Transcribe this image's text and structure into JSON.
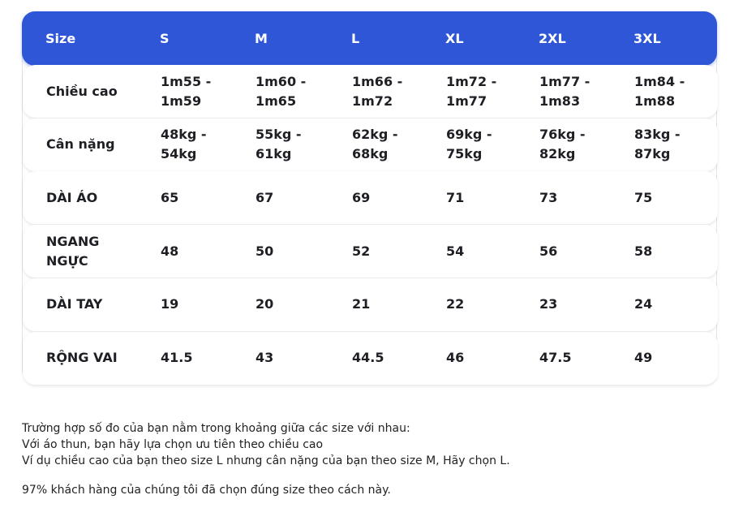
{
  "table": {
    "header": [
      "Size",
      "S",
      "M",
      "L",
      "XL",
      "2XL",
      "3XL"
    ],
    "rows": [
      [
        "Chiều cao",
        "1m55 - 1m59",
        "1m60 - 1m65",
        "1m66 - 1m72",
        "1m72 - 1m77",
        "1m77 - 1m83",
        "1m84 - 1m88"
      ],
      [
        "Cân nặng",
        "48kg - 54kg",
        "55kg - 61kg",
        "62kg - 68kg",
        "69kg - 75kg",
        "76kg - 82kg",
        "83kg - 87kg"
      ],
      [
        "DÀI ÁO",
        "65",
        "67",
        "69",
        "71",
        "73",
        "75"
      ],
      [
        "NGANG NGỰC",
        "48",
        "50",
        "52",
        "54",
        "56",
        "58"
      ],
      [
        "DÀI TAY",
        "19",
        "20",
        "21",
        "22",
        "23",
        "24"
      ],
      [
        "RỘNG VAI",
        "41.5",
        "43",
        "44.5",
        "46",
        "47.5",
        "49"
      ]
    ]
  },
  "notes": [
    "Trường hợp số đo của bạn nằm trong khoảng giữa các size với nhau:",
    "Với áo thun, bạn hãy lựa chọn ưu tiên theo chiều cao",
    "Ví dụ chiều cao của bạn theo size L nhưng cân nặng của bạn theo size M, Hãy chọn L.",
    "97% khách hàng của chúng tôi đã chọn đúng size theo cách này."
  ]
}
